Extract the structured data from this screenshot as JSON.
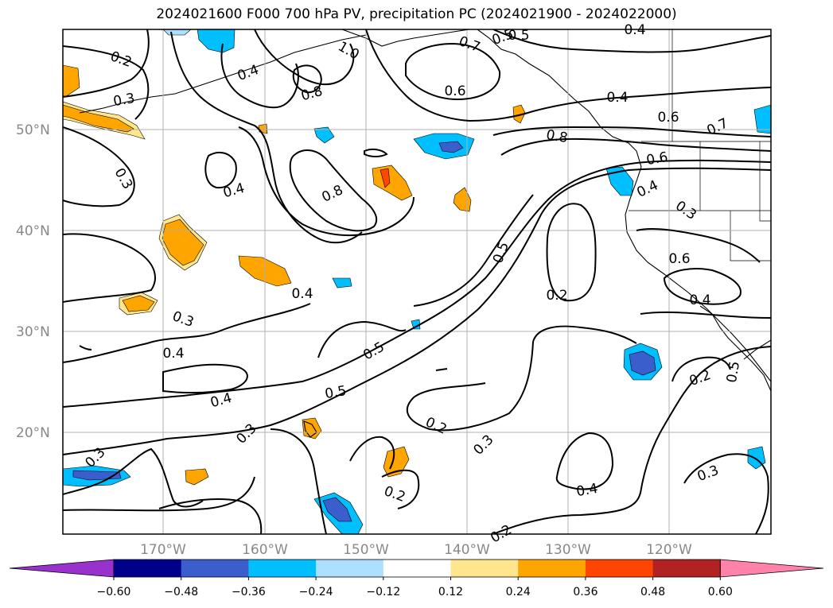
{
  "title": "2024021600 F000 700 hPa PV, precipitation PC (2024021900 - 2024022000)",
  "map": {
    "lat_labels": [
      "50°N",
      "40°N",
      "30°N",
      "20°N"
    ],
    "lon_labels": [
      "170°W",
      "160°W",
      "150°W",
      "140°W",
      "130°W",
      "120°W"
    ],
    "contour_labels": [
      "0.2",
      "0.3",
      "0.4",
      "0.8",
      "1.0",
      "0.7",
      "0.6",
      "0.5",
      "0.4",
      "0.6",
      "0.7",
      "0.8",
      "0.6",
      "0.4",
      "0.3",
      "0.8",
      "0.4",
      "0.3",
      "0.4",
      "0.5",
      "0.5",
      "0.4",
      "0.2",
      "0.3",
      "0.4",
      "0.5",
      "0.3",
      "0.2",
      "0.2",
      "0.5",
      "0.3",
      "0.2",
      "0.4",
      "0.3",
      "0.3",
      "0.2",
      "0.4",
      "0.5",
      "0.6",
      "0.4"
    ],
    "colors": {
      "land_outline": "#000000",
      "gridline": "#b0b0b0",
      "contour": "#000000"
    }
  },
  "colorbar": {
    "tick_labels": [
      "−0.60",
      "−0.48",
      "−0.36",
      "−0.24",
      "−0.12",
      "0.12",
      "0.24",
      "0.36",
      "0.48",
      "0.60"
    ],
    "colors": [
      "#9932CC",
      "#00008B",
      "#3A5FCD",
      "#00BFFF",
      "#ADDFFF",
      "#FFFFFF",
      "#FFE68C",
      "#FFA500",
      "#FF4500",
      "#B22222",
      "#FF82AB"
    ]
  }
}
